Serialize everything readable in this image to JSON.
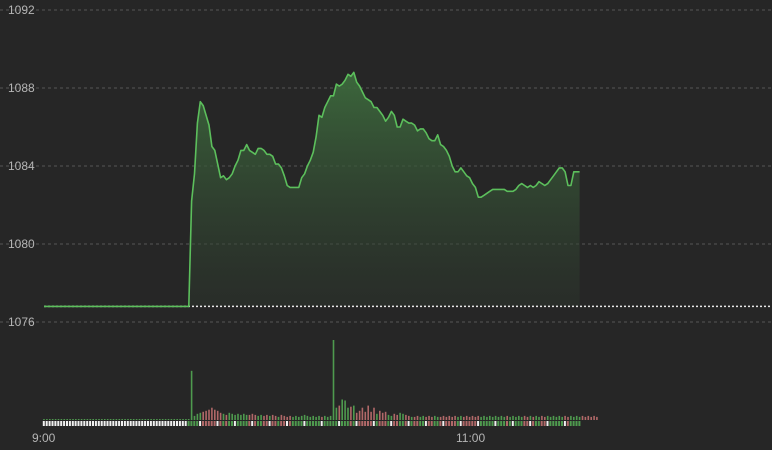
{
  "chart_data": {
    "type": "line",
    "title": "",
    "xlabel": "",
    "ylabel": "",
    "ylim": [
      1076,
      1092
    ],
    "y_ticks": [
      1092,
      1088,
      1084,
      1080,
      1076
    ],
    "x_tick_labels": [
      "9:00",
      "11:00"
    ],
    "grid": true,
    "reference_line": 1076.8,
    "colors": {
      "background": "#262626",
      "line": "#5cbf5c",
      "area_top": "#3d6b3d",
      "grid": "#555555",
      "volume_up": "#4e9a4e",
      "volume_down": "#b06868",
      "reference": "#e6e6e6"
    },
    "series": [
      {
        "values": [
          1076.8,
          1076.8,
          1076.8,
          1076.8,
          1076.8,
          1076.8,
          1076.8,
          1076.8,
          1076.8,
          1076.8,
          1076.8,
          1076.8,
          1076.8,
          1076.8,
          1076.8,
          1076.8,
          1076.8,
          1076.8,
          1076.8,
          1076.8,
          1076.8,
          1076.8,
          1076.8,
          1076.8,
          1076.8,
          1076.8,
          1076.8,
          1076.8,
          1076.8,
          1076.8,
          1076.8,
          1076.8,
          1076.8,
          1076.8,
          1076.8,
          1076.8,
          1076.8,
          1076.8,
          1076.8,
          1076.8,
          1076.8,
          1076.8,
          1076.8,
          1076.8,
          1076.8,
          1076.8,
          1076.8,
          1076.8,
          1076.8,
          1076.8,
          1076.8,
          1082.2,
          1083.6,
          1086.2,
          1087.3,
          1087.1,
          1086.6,
          1086.1,
          1085.0,
          1084.8,
          1084.1,
          1083.4,
          1083.5,
          1083.3,
          1083.4,
          1083.6,
          1084.0,
          1084.3,
          1084.8,
          1084.8,
          1085.1,
          1084.8,
          1084.7,
          1084.6,
          1084.9,
          1084.9,
          1084.8,
          1084.6,
          1084.6,
          1084.5,
          1084.1,
          1084.1,
          1083.9,
          1083.5,
          1083.0,
          1082.9,
          1082.9,
          1082.9,
          1082.9,
          1083.4,
          1083.6,
          1084.0,
          1084.3,
          1084.7,
          1085.5,
          1086.6,
          1086.5,
          1087.0,
          1087.3,
          1087.6,
          1087.6,
          1088.2,
          1088.1,
          1088.2,
          1088.4,
          1088.7,
          1088.6,
          1088.8,
          1088.3,
          1088.1,
          1087.8,
          1087.5,
          1087.4,
          1087.3,
          1087.0,
          1087.0,
          1086.8,
          1086.6,
          1086.3,
          1086.5,
          1086.8,
          1086.6,
          1086.0,
          1086.0,
          1086.4,
          1086.3,
          1086.2,
          1086.2,
          1086.1,
          1085.8,
          1085.9,
          1085.9,
          1085.7,
          1085.4,
          1085.3,
          1085.3,
          1085.6,
          1085.1,
          1085.0,
          1084.8,
          1084.5,
          1084.0,
          1083.7,
          1083.7,
          1083.9,
          1083.7,
          1083.5,
          1083.4,
          1083.1,
          1082.9,
          1082.4,
          1082.4,
          1082.5,
          1082.6,
          1082.7,
          1082.8,
          1082.8,
          1082.8,
          1082.8,
          1082.8,
          1082.7,
          1082.7,
          1082.7,
          1082.8,
          1083.0,
          1083.1,
          1083.0,
          1082.9,
          1083.0,
          1082.9,
          1083.0,
          1083.2,
          1083.1,
          1083.0,
          1083.1,
          1083.3,
          1083.5,
          1083.7,
          1083.9,
          1083.9,
          1083.7,
          1083.0,
          1083.0,
          1083.7,
          1083.7,
          1083.7
        ]
      }
    ],
    "volume": {
      "baseline": 1,
      "values": [
        1,
        1,
        1,
        1,
        1,
        1,
        1,
        1,
        1,
        1,
        1,
        1,
        1,
        1,
        1,
        1,
        1,
        1,
        1,
        1,
        1,
        1,
        1,
        1,
        1,
        1,
        1,
        1,
        1,
        1,
        1,
        1,
        1,
        1,
        1,
        1,
        1,
        1,
        1,
        1,
        1,
        1,
        1,
        1,
        1,
        1,
        1,
        1,
        1,
        1,
        1,
        48,
        4,
        6,
        7,
        8,
        9,
        10,
        12,
        10,
        9,
        7,
        6,
        5,
        7,
        6,
        5,
        6,
        5,
        6,
        5,
        5,
        6,
        5,
        4,
        5,
        4,
        5,
        4,
        5,
        4,
        3,
        5,
        4,
        3,
        4,
        3,
        4,
        3,
        4,
        5,
        4,
        3,
        4,
        3,
        4,
        3,
        4,
        3,
        4,
        78,
        12,
        14,
        20,
        19,
        12,
        13,
        14,
        7,
        9,
        12,
        8,
        14,
        8,
        12,
        6,
        9,
        7,
        8,
        5,
        4,
        6,
        5,
        7,
        6,
        5,
        4,
        3,
        3,
        4,
        3,
        4,
        3,
        4,
        3,
        4,
        3,
        3,
        4,
        3,
        4,
        3,
        4,
        3,
        4,
        3,
        4,
        3,
        4,
        3,
        4,
        3,
        4,
        3,
        4,
        3,
        4,
        3,
        4,
        3,
        4,
        3,
        4,
        3,
        4,
        3,
        4,
        3,
        4,
        3,
        4,
        3,
        4,
        3,
        4,
        3,
        4,
        3,
        4,
        3,
        4,
        3,
        4,
        3,
        4,
        3,
        4,
        3,
        4,
        3,
        4,
        3
      ],
      "direction": "ud"
    }
  }
}
